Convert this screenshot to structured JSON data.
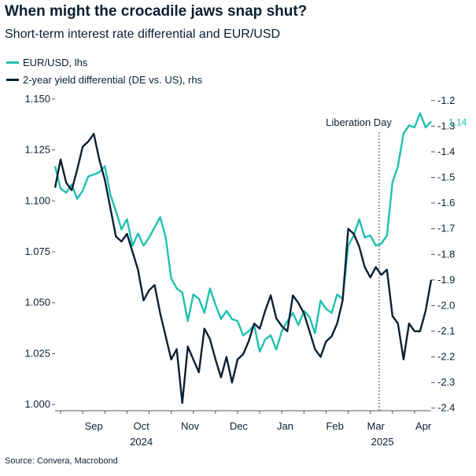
{
  "title": "When might the crocadile jaws snap shut?",
  "subtitle": "Short-term interest rate differential and EUR/USD",
  "source": "Source: Convera, Macrobond",
  "colors": {
    "eurusd": "#1ec0b0",
    "yield": "#0b1f33",
    "axis": "#555555"
  },
  "chart_data": {
    "type": "line",
    "title": "When might the crocadile jaws snap shut?",
    "subtitle": "Short-term interest rate differential and EUR/USD",
    "x_unit": "weeks since 2024-08-12",
    "xlim": [
      0,
      34
    ],
    "x_months": [
      {
        "label": "Sep",
        "x": 3.5
      },
      {
        "label": "Oct",
        "x": 7.8
      },
      {
        "label": "Nov",
        "x": 12.2
      },
      {
        "label": "Dec",
        "x": 16.6
      },
      {
        "label": "Jan",
        "x": 20.8
      },
      {
        "label": "Feb",
        "x": 25.3
      },
      {
        "label": "Mar",
        "x": 29.0
      },
      {
        "label": "Apr",
        "x": 33.3
      }
    ],
    "x_years": [
      {
        "label": "2024",
        "x": 7.8
      },
      {
        "label": "2025",
        "x": 29.6
      }
    ],
    "y_left": {
      "label": "EUR/USD, lhs",
      "ylim": [
        0.997,
        1.153
      ],
      "ticks": [
        "1.000",
        "1.025",
        "1.050",
        "1.075",
        "1.100",
        "1.125",
        "1.150"
      ],
      "tick_values": [
        1.0,
        1.025,
        1.05,
        1.075,
        1.1,
        1.125,
        1.15
      ]
    },
    "y_right": {
      "label": "2-year yield differential (DE vs. US), rhs",
      "ylim": [
        -2.41,
        -1.17
      ],
      "ticks": [
        "-1.2",
        "-1.3",
        "-1.4",
        "-1.5",
        "-1.6",
        "-1.7",
        "-1.8",
        "-1.9",
        "-2.0",
        "-2.1",
        "-2.2",
        "-2.3",
        "-2.4"
      ],
      "tick_values": [
        -1.2,
        -1.3,
        -1.4,
        -1.5,
        -1.6,
        -1.7,
        -1.8,
        -1.9,
        -2.0,
        -2.1,
        -2.2,
        -2.3,
        -2.4
      ]
    },
    "annotation": {
      "label": "Liberation Day",
      "x": 29.3
    },
    "end_label": "1.14",
    "series": [
      {
        "name": "EUR/USD, lhs",
        "axis": "left",
        "x": [
          0,
          0.5,
          1,
          1.5,
          2,
          2.5,
          3,
          3.5,
          4,
          4.5,
          5,
          5.5,
          6,
          6.5,
          7,
          7.5,
          8,
          8.5,
          9,
          9.5,
          10,
          10.5,
          11,
          11.5,
          12,
          12.5,
          13,
          13.5,
          14,
          14.5,
          15,
          15.5,
          16,
          16.5,
          17,
          17.5,
          18,
          18.5,
          19,
          19.5,
          20,
          20.5,
          21,
          21.5,
          22,
          22.5,
          23,
          23.5,
          24,
          24.5,
          25,
          25.5,
          26,
          26.5,
          27,
          27.5,
          28,
          28.5,
          29,
          29.5,
          30,
          30.5,
          31,
          31.5,
          32,
          32.5,
          33,
          33.5,
          34
        ],
        "values": [
          1.117,
          1.106,
          1.104,
          1.108,
          1.101,
          1.105,
          1.112,
          1.113,
          1.114,
          1.117,
          1.103,
          1.095,
          1.086,
          1.091,
          1.078,
          1.084,
          1.078,
          1.082,
          1.087,
          1.092,
          1.082,
          1.062,
          1.057,
          1.055,
          1.041,
          1.054,
          1.052,
          1.045,
          1.057,
          1.049,
          1.042,
          1.046,
          1.042,
          1.041,
          1.034,
          1.036,
          1.039,
          1.026,
          1.032,
          1.034,
          1.027,
          1.036,
          1.041,
          1.045,
          1.039,
          1.046,
          1.043,
          1.035,
          1.051,
          1.047,
          1.045,
          1.054,
          1.052,
          1.078,
          1.083,
          1.091,
          1.082,
          1.083,
          1.078,
          1.079,
          1.083,
          1.109,
          1.117,
          1.133,
          1.137,
          1.136,
          1.143,
          1.136,
          1.139
        ]
      },
      {
        "name": "2-year yield differential (DE vs. US), rhs",
        "axis": "right",
        "x": [
          0,
          0.5,
          1,
          1.5,
          2,
          2.5,
          3,
          3.5,
          4,
          4.5,
          5,
          5.5,
          6,
          6.5,
          7,
          7.5,
          8,
          8.5,
          9,
          9.5,
          10,
          10.5,
          11,
          11.5,
          12,
          12.5,
          13,
          13.5,
          14,
          14.5,
          15,
          15.5,
          16,
          16.5,
          17,
          17.5,
          18,
          18.5,
          19,
          19.5,
          20,
          20.5,
          21,
          21.5,
          22,
          22.5,
          23,
          23.5,
          24,
          24.5,
          25,
          25.5,
          26,
          26.5,
          27,
          27.5,
          28,
          28.5,
          29,
          29.5,
          30,
          30.5,
          31,
          31.5,
          32,
          32.5,
          33,
          33.5,
          34
        ],
        "values": [
          -1.54,
          -1.43,
          -1.52,
          -1.55,
          -1.47,
          -1.38,
          -1.36,
          -1.33,
          -1.43,
          -1.51,
          -1.62,
          -1.73,
          -1.75,
          -1.72,
          -1.79,
          -1.86,
          -1.98,
          -1.94,
          -1.92,
          -2.03,
          -2.12,
          -2.21,
          -2.17,
          -2.38,
          -2.16,
          -2.21,
          -2.26,
          -2.09,
          -2.13,
          -2.21,
          -2.28,
          -2.2,
          -2.3,
          -2.21,
          -2.19,
          -2.14,
          -2.07,
          -2.09,
          -2.02,
          -1.96,
          -2.05,
          -2.08,
          -2.1,
          -1.96,
          -1.99,
          -2.03,
          -2.1,
          -2.17,
          -2.2,
          -2.14,
          -2.12,
          -2.07,
          -1.98,
          -1.7,
          -1.72,
          -1.77,
          -1.85,
          -1.89,
          -1.85,
          -1.88,
          -1.86,
          -2.04,
          -2.07,
          -2.21,
          -2.07,
          -2.1,
          -2.1,
          -2.02,
          -1.9
        ]
      }
    ]
  }
}
